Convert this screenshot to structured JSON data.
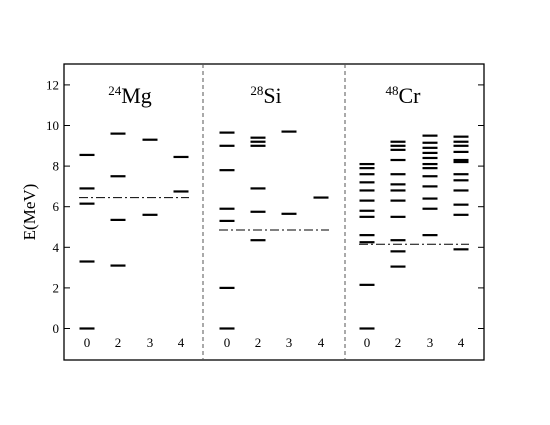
{
  "chart_data": {
    "type": "scatter",
    "mark": "horizontal level lines",
    "ylabel": "E(MeV)",
    "ylim": [
      -1.5,
      13
    ],
    "yticks": [
      0,
      2,
      4,
      6,
      8,
      10,
      12
    ],
    "grid": false,
    "legend": "none",
    "panel_divider": "dashed",
    "threshold_style": "dash-dot",
    "colors": {
      "lines": "#000000",
      "background": "#ffffff",
      "divider": "#555555"
    },
    "panels": [
      {
        "mass": "24",
        "element": "Mg",
        "threshold": 6.45,
        "groups": [
          {
            "label": "0",
            "levels": [
              0.0,
              3.3,
              6.15,
              6.9,
              8.55
            ]
          },
          {
            "label": "2",
            "levels": [
              3.1,
              5.35,
              7.5,
              9.6
            ]
          },
          {
            "label": "3",
            "levels": [
              5.6,
              9.3
            ]
          },
          {
            "label": "4",
            "levels": [
              6.75,
              8.45
            ]
          }
        ]
      },
      {
        "mass": "28",
        "element": "Si",
        "threshold": 4.85,
        "groups": [
          {
            "label": "0",
            "levels": [
              0.0,
              2.0,
              5.3,
              5.9,
              7.8,
              9.0,
              9.65
            ]
          },
          {
            "label": "2",
            "levels": [
              4.35,
              5.75,
              6.9,
              9.0,
              9.2,
              9.4
            ]
          },
          {
            "label": "3",
            "levels": [
              5.65,
              9.7
            ]
          },
          {
            "label": "4",
            "levels": [
              6.45
            ]
          }
        ]
      },
      {
        "mass": "48",
        "element": "Cr",
        "threshold": 4.15,
        "groups": [
          {
            "label": "0",
            "levels": [
              0.0,
              2.15,
              4.25,
              4.6,
              5.5,
              5.8,
              6.3,
              6.8,
              7.2,
              7.6,
              7.9,
              8.1
            ]
          },
          {
            "label": "2",
            "levels": [
              3.05,
              3.8,
              4.35,
              5.5,
              6.3,
              6.8,
              7.1,
              7.6,
              8.3,
              8.8,
              9.0,
              9.2
            ]
          },
          {
            "label": "3",
            "levels": [
              4.6,
              5.9,
              6.4,
              7.0,
              7.5,
              7.9,
              8.1,
              8.4,
              8.65,
              8.9,
              9.15,
              9.5
            ]
          },
          {
            "label": "4",
            "levels": [
              3.9,
              5.6,
              6.1,
              6.8,
              7.3,
              7.6,
              8.2,
              8.3,
              8.7,
              9.0,
              9.2,
              9.45
            ]
          }
        ]
      }
    ]
  }
}
